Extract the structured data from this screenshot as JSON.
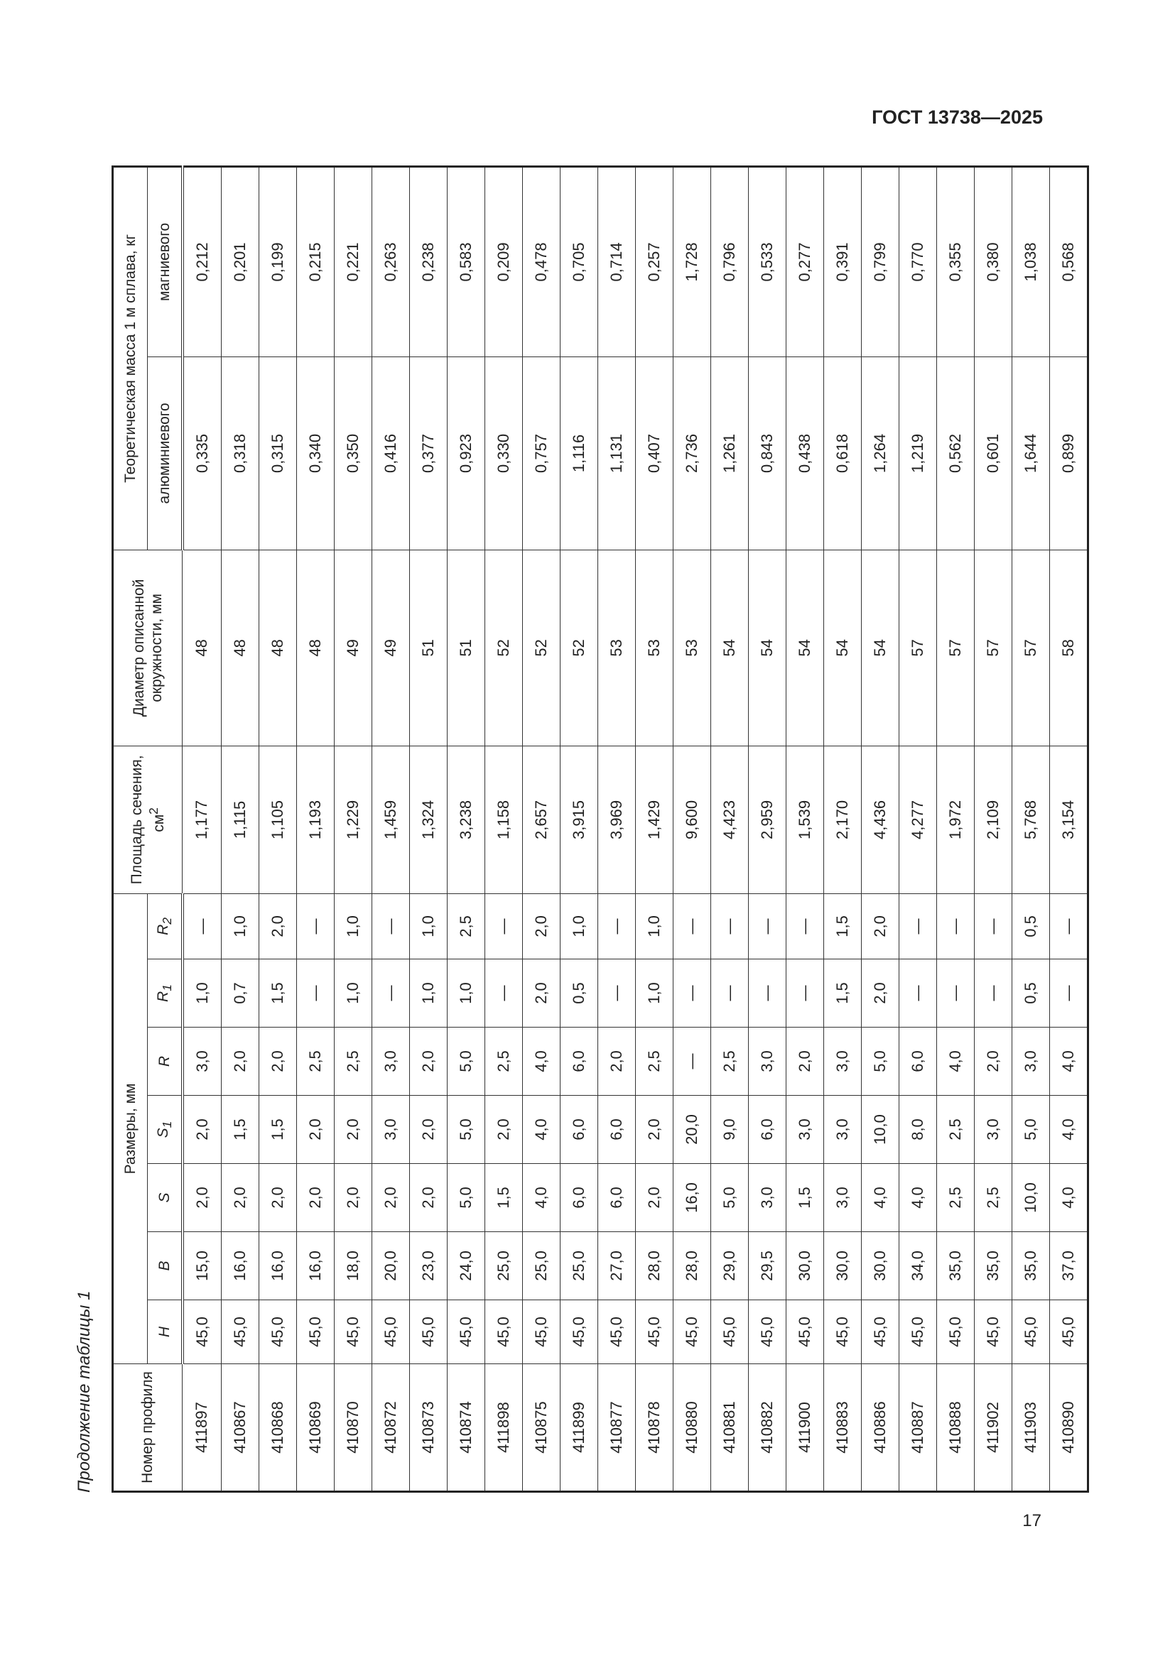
{
  "header": {
    "standard": "ГОСТ 13738—2025"
  },
  "caption": "Продолжение таблицы 1",
  "page_number": "17",
  "table": {
    "columns": {
      "profile": "Номер профиля",
      "dimensions": "Размеры, мм",
      "H": {
        "sym": "H",
        "sub": ""
      },
      "B": {
        "sym": "B",
        "sub": ""
      },
      "S": {
        "sym": "S",
        "sub": ""
      },
      "S1": {
        "sym": "S",
        "sub": "1"
      },
      "R": {
        "sym": "R",
        "sub": ""
      },
      "R1": {
        "sym": "R",
        "sub": "1"
      },
      "R2": {
        "sym": "R",
        "sub": "2"
      },
      "area": {
        "text": "Площадь сечения, см",
        "sup": "2"
      },
      "diameter": "Диаметр описанной окружности, мм",
      "mass": "Теоретическая масса 1 м сплава, кг",
      "aluminium": "алюминиевого",
      "magnesium": "магниевого"
    },
    "rows": [
      [
        "411897",
        "45,0",
        "15,0",
        "2,0",
        "2,0",
        "3,0",
        "1,0",
        "—",
        "1,177",
        "48",
        "0,335",
        "0,212"
      ],
      [
        "410867",
        "45,0",
        "16,0",
        "2,0",
        "1,5",
        "2,0",
        "0,7",
        "1,0",
        "1,115",
        "48",
        "0,318",
        "0,201"
      ],
      [
        "410868",
        "45,0",
        "16,0",
        "2,0",
        "1,5",
        "2,0",
        "1,5",
        "2,0",
        "1,105",
        "48",
        "0,315",
        "0,199"
      ],
      [
        "410869",
        "45,0",
        "16,0",
        "2,0",
        "2,0",
        "2,5",
        "—",
        "—",
        "1,193",
        "48",
        "0,340",
        "0,215"
      ],
      [
        "410870",
        "45,0",
        "18,0",
        "2,0",
        "2,0",
        "2,5",
        "1,0",
        "1,0",
        "1,229",
        "49",
        "0,350",
        "0,221"
      ],
      [
        "410872",
        "45,0",
        "20,0",
        "2,0",
        "3,0",
        "3,0",
        "—",
        "—",
        "1,459",
        "49",
        "0,416",
        "0,263"
      ],
      [
        "410873",
        "45,0",
        "23,0",
        "2,0",
        "2,0",
        "2,0",
        "1,0",
        "1,0",
        "1,324",
        "51",
        "0,377",
        "0,238"
      ],
      [
        "410874",
        "45,0",
        "24,0",
        "5,0",
        "5,0",
        "5,0",
        "1,0",
        "2,5",
        "3,238",
        "51",
        "0,923",
        "0,583"
      ],
      [
        "411898",
        "45,0",
        "25,0",
        "1,5",
        "2,0",
        "2,5",
        "—",
        "—",
        "1,158",
        "52",
        "0,330",
        "0,209"
      ],
      [
        "410875",
        "45,0",
        "25,0",
        "4,0",
        "4,0",
        "4,0",
        "2,0",
        "2,0",
        "2,657",
        "52",
        "0,757",
        "0,478"
      ],
      [
        "411899",
        "45,0",
        "25,0",
        "6,0",
        "6,0",
        "6,0",
        "0,5",
        "1,0",
        "3,915",
        "52",
        "1,116",
        "0,705"
      ],
      [
        "410877",
        "45,0",
        "27,0",
        "6,0",
        "6,0",
        "2,0",
        "—",
        "—",
        "3,969",
        "53",
        "1,131",
        "0,714"
      ],
      [
        "410878",
        "45,0",
        "28,0",
        "2,0",
        "2,0",
        "2,5",
        "1,0",
        "1,0",
        "1,429",
        "53",
        "0,407",
        "0,257"
      ],
      [
        "410880",
        "45,0",
        "28,0",
        "16,0",
        "20,0",
        "—",
        "—",
        "—",
        "9,600",
        "53",
        "2,736",
        "1,728"
      ],
      [
        "410881",
        "45,0",
        "29,0",
        "5,0",
        "9,0",
        "2,5",
        "—",
        "—",
        "4,423",
        "54",
        "1,261",
        "0,796"
      ],
      [
        "410882",
        "45,0",
        "29,5",
        "3,0",
        "6,0",
        "3,0",
        "—",
        "—",
        "2,959",
        "54",
        "0,843",
        "0,533"
      ],
      [
        "411900",
        "45,0",
        "30,0",
        "1,5",
        "3,0",
        "2,0",
        "—",
        "—",
        "1,539",
        "54",
        "0,438",
        "0,277"
      ],
      [
        "410883",
        "45,0",
        "30,0",
        "3,0",
        "3,0",
        "3,0",
        "1,5",
        "1,5",
        "2,170",
        "54",
        "0,618",
        "0,391"
      ],
      [
        "410886",
        "45,0",
        "30,0",
        "4,0",
        "10,0",
        "5,0",
        "2,0",
        "2,0",
        "4,436",
        "54",
        "1,264",
        "0,799"
      ],
      [
        "410887",
        "45,0",
        "34,0",
        "4,0",
        "8,0",
        "6,0",
        "—",
        "—",
        "4,277",
        "57",
        "1,219",
        "0,770"
      ],
      [
        "410888",
        "45,0",
        "35,0",
        "2,5",
        "2,5",
        "4,0",
        "—",
        "—",
        "1,972",
        "57",
        "0,562",
        "0,355"
      ],
      [
        "411902",
        "45,0",
        "35,0",
        "2,5",
        "3,0",
        "2,0",
        "—",
        "—",
        "2,109",
        "57",
        "0,601",
        "0,380"
      ],
      [
        "411903",
        "45,0",
        "35,0",
        "10,0",
        "5,0",
        "3,0",
        "0,5",
        "0,5",
        "5,768",
        "57",
        "1,644",
        "1,038"
      ],
      [
        "410890",
        "45,0",
        "37,0",
        "4,0",
        "4,0",
        "4,0",
        "—",
        "—",
        "3,154",
        "58",
        "0,899",
        "0,568"
      ]
    ]
  }
}
